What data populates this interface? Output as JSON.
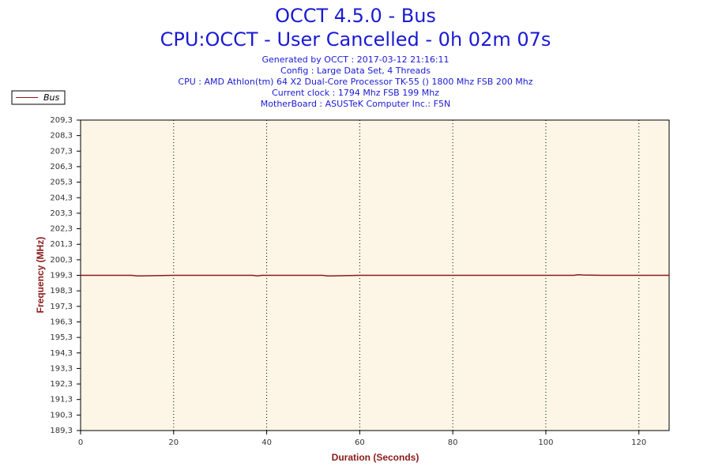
{
  "chart_data": {
    "type": "line",
    "title": "OCCT 4.5.0 - Bus",
    "subtitle": "CPU:OCCT - User Cancelled - 0h 02m 07s",
    "info": [
      "Generated by OCCT : 2017-03-12 21:16:11",
      "Config : Large Data Set, 4 Threads",
      "CPU : AMD Athlon(tm) 64 X2 Dual-Core Processor TK-55 () 1800 Mhz FSB 200 Mhz",
      "Current clock : 1794 Mhz FSB 199 Mhz",
      "MotherBoard : ASUSTeK Computer Inc.: F5N"
    ],
    "x_label": "Duration (Seconds)",
    "y_label": "Frequency (MHz)",
    "x": [
      0,
      11,
      12,
      13,
      20,
      21,
      34,
      37,
      38,
      39,
      45,
      52,
      53,
      54,
      60,
      80,
      90,
      100,
      106,
      107,
      108,
      112,
      126.5
    ],
    "series": [
      {
        "name": "Bus",
        "color": "#8b1a1a",
        "values": [
          199.3,
          199.3,
          199.26,
          199.26,
          199.3,
          199.3,
          199.3,
          199.3,
          199.26,
          199.3,
          199.3,
          199.3,
          199.26,
          199.26,
          199.3,
          199.3,
          199.3,
          199.3,
          199.3,
          199.34,
          199.32,
          199.3,
          199.3
        ]
      }
    ],
    "xlim": [
      0,
      126.5
    ],
    "xticks": [
      0,
      20,
      40,
      60,
      80,
      100,
      120
    ],
    "ylim": [
      189.3,
      209.3
    ],
    "yticks": [
      {
        "value": 189.3,
        "label": "189,3"
      },
      {
        "value": 190.3,
        "label": "190,3"
      },
      {
        "value": 191.3,
        "label": "191,3"
      },
      {
        "value": 192.3,
        "label": "192,3"
      },
      {
        "value": 193.3,
        "label": "193,3"
      },
      {
        "value": 194.3,
        "label": "194,3"
      },
      {
        "value": 195.3,
        "label": "195,3"
      },
      {
        "value": 196.3,
        "label": "196,3"
      },
      {
        "value": 197.3,
        "label": "197,3"
      },
      {
        "value": 198.3,
        "label": "198,3"
      },
      {
        "value": 199.3,
        "label": "199,3"
      },
      {
        "value": 200.3,
        "label": "200,3"
      },
      {
        "value": 201.3,
        "label": "201,3"
      },
      {
        "value": 202.3,
        "label": "202,3"
      },
      {
        "value": 203.3,
        "label": "203,3"
      },
      {
        "value": 204.3,
        "label": "204,3"
      },
      {
        "value": 205.3,
        "label": "205,3"
      },
      {
        "value": 206.3,
        "label": "206,3"
      },
      {
        "value": 207.3,
        "label": "207,3"
      },
      {
        "value": 208.3,
        "label": "208,3"
      },
      {
        "value": 209.3,
        "label": "209,3"
      }
    ],
    "grid": "x",
    "legend": "top-left"
  }
}
